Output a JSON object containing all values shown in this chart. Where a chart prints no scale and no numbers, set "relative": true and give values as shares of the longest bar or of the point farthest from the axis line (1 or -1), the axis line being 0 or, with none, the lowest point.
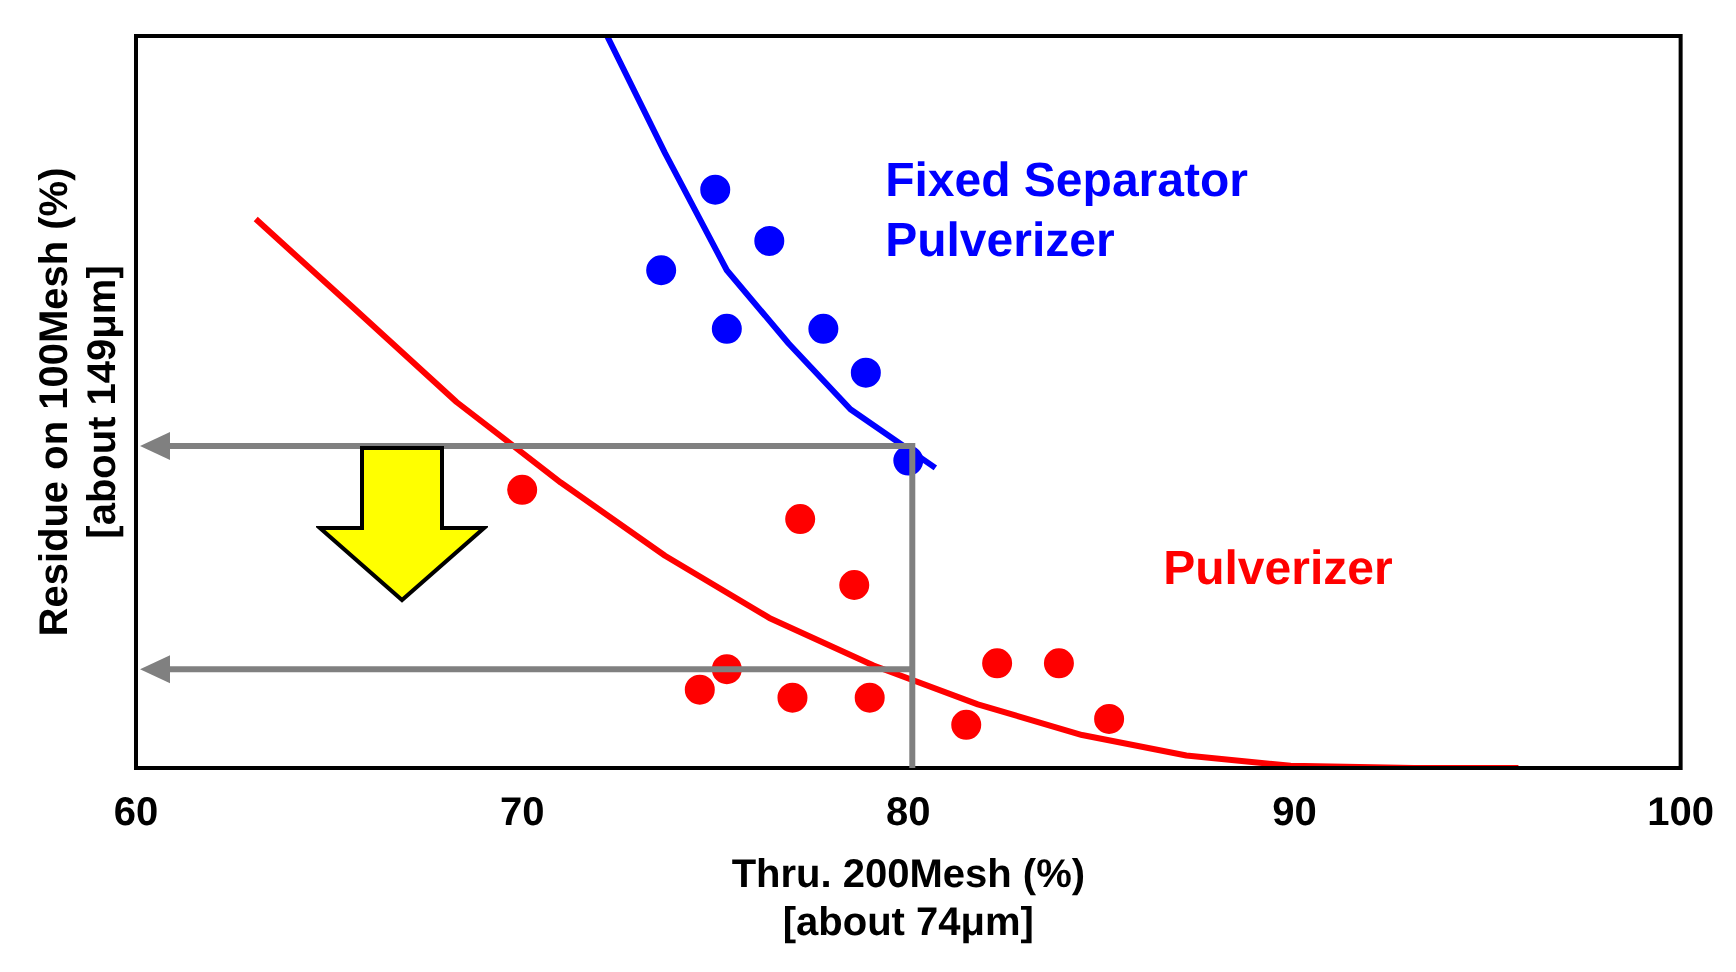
{
  "chart_data": {
    "type": "scatter",
    "relative": true,
    "xlabel": "Thru. 200Mesh (%)\n[about 74μm]",
    "ylabel": "Residue on 100Mesh (%)\n[about 149μm]",
    "xlim": [
      60,
      100
    ],
    "xticks": [
      60,
      70,
      80,
      90,
      100
    ],
    "grid": false,
    "legend": false,
    "marker": "circle",
    "series": [
      {
        "name": "Fixed Separator\nPulverizer",
        "color": "#0000ff",
        "x": [
          75.0,
          76.4,
          73.6,
          75.3,
          77.8,
          78.9,
          80.0
        ],
        "values": [
          0.79,
          0.72,
          0.68,
          0.6,
          0.6,
          0.54,
          0.42
        ]
      },
      {
        "type": "line",
        "marker": "none",
        "color": "#0000ff",
        "x": [
          72.2,
          73.7,
          75.3,
          76.9,
          78.5,
          80.7
        ],
        "values": [
          1.0,
          0.84,
          0.68,
          0.58,
          0.49,
          0.41
        ]
      },
      {
        "name": "Pulverizer",
        "color": "#ff0000",
        "x": [
          70.0,
          77.2,
          78.6,
          75.3,
          74.6,
          77.0,
          79.0,
          82.3,
          83.9,
          81.5,
          85.2
        ],
        "values": [
          0.38,
          0.34,
          0.25,
          0.135,
          0.107,
          0.096,
          0.096,
          0.143,
          0.143,
          0.059,
          0.067
        ]
      },
      {
        "type": "line",
        "marker": "none",
        "color": "#ff0000",
        "x": [
          63.1,
          65.6,
          68.3,
          71.0,
          73.7,
          76.4,
          79.1,
          81.8,
          84.5,
          87.2,
          89.9,
          93.1,
          95.8
        ],
        "values": [
          0.75,
          0.63,
          0.5,
          0.39,
          0.29,
          0.205,
          0.14,
          0.087,
          0.045,
          0.017,
          0.003,
          0,
          0
        ]
      }
    ]
  }
}
